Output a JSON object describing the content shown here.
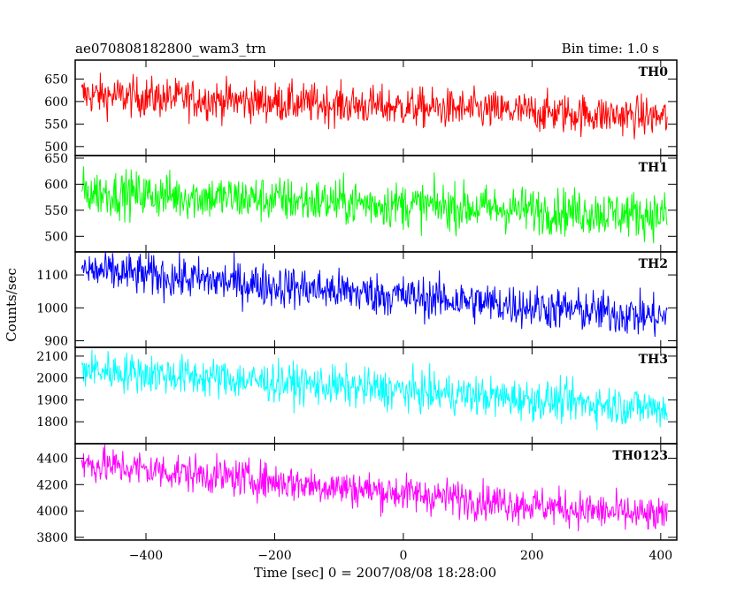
{
  "header": {
    "left_title": "ae070808182800_wam3_trn",
    "right_title": "Bin time: 1.0 s"
  },
  "chart_data": {
    "type": "line",
    "title": "ae070808182800_wam3_trn",
    "subtitle": "Bin time: 1.0 s",
    "xlabel": "Time [sec] 0 = 2007/08/08 18:28:00",
    "ylabel": "Counts/sec",
    "xlim": [
      -510,
      425
    ],
    "x_ticks": [
      -400,
      -200,
      0,
      200,
      400
    ],
    "x_tick_labels": [
      "−400",
      "−200",
      "0",
      "200",
      "400"
    ],
    "bin_seconds": 1.0,
    "x_range_data": [
      -500,
      410
    ],
    "grid": false,
    "legend": "none",
    "series": [
      {
        "name": "TH0",
        "color": "#ff0000",
        "ylim": [
          480,
          692
        ],
        "yticks": [
          500,
          550,
          600,
          650
        ],
        "trend": [
          615,
          565
        ],
        "noise": 22
      },
      {
        "name": "TH1",
        "color": "#00ff00",
        "ylim": [
          470,
          655
        ],
        "yticks": [
          500,
          550,
          600,
          650
        ],
        "trend": [
          585,
          540
        ],
        "noise": 22
      },
      {
        "name": "TH2",
        "color": "#0000ff",
        "ylim": [
          880,
          1170
        ],
        "yticks": [
          900,
          1000,
          1100
        ],
        "trend": [
          1115,
          970
        ],
        "noise": 32
      },
      {
        "name": "TH3",
        "color": "#00ffff",
        "ylim": [
          1700,
          2140
        ],
        "yticks": [
          1800,
          1900,
          2000,
          2100
        ],
        "trend": [
          2040,
          1860
        ],
        "noise": 45
      },
      {
        "name": "TH0123",
        "color": "#ff00ff",
        "ylim": [
          3780,
          4510
        ],
        "yticks": [
          3800,
          4000,
          4200,
          4400
        ],
        "trend": [
          4360,
          3950
        ],
        "noise": 70
      }
    ]
  }
}
